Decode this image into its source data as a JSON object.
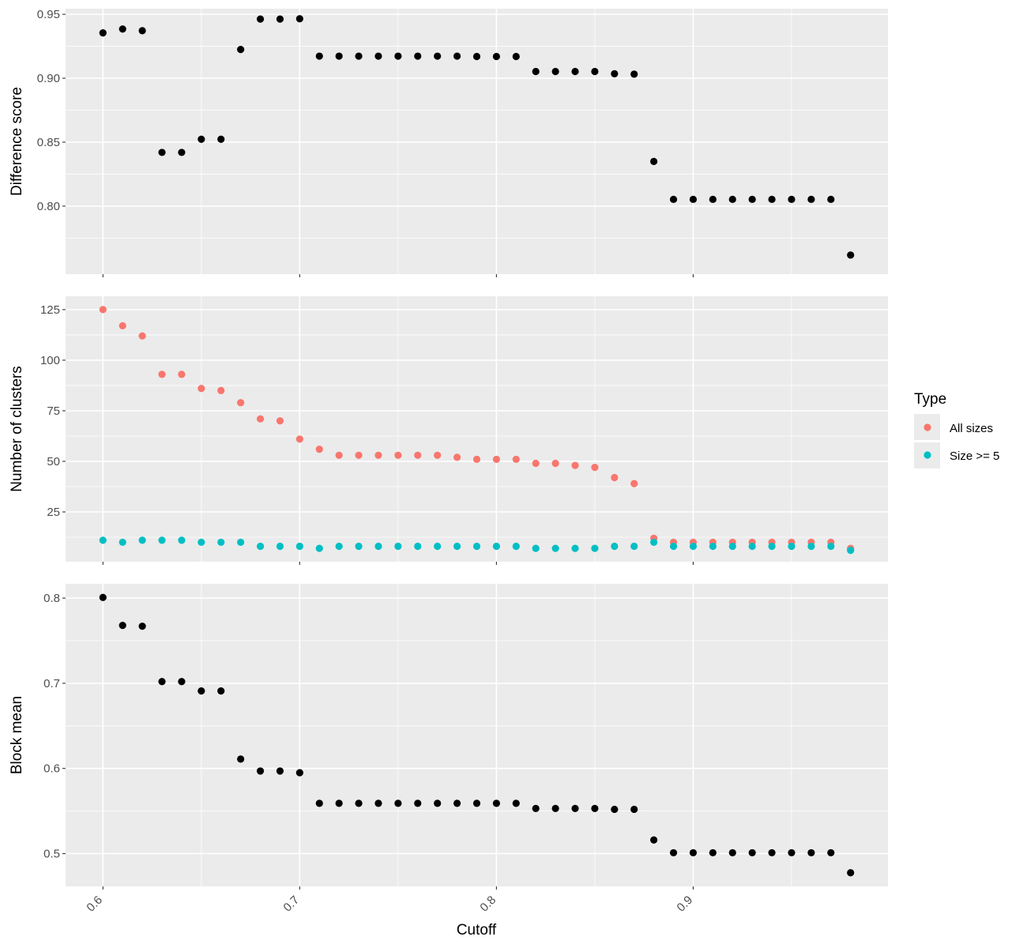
{
  "colors": {
    "panel_bg": "#EBEBEB",
    "grid": "#FFFFFF",
    "black_point": "#000000",
    "all_sizes": "#F8766D",
    "size_ge5": "#00BFC4"
  },
  "chart_data": {
    "type": "scatter",
    "xlabel": "Cutoff",
    "xlim": [
      0.581,
      0.999
    ],
    "x_ticks": [
      0.6,
      0.7,
      0.8,
      0.9
    ],
    "x_tick_labels": [
      "0.6",
      "0.7",
      "0.8",
      "0.9"
    ],
    "grid": true,
    "legend": {
      "title": "Type",
      "placement": "right",
      "entries": [
        {
          "label": "All sizes",
          "color": "#F8766D"
        },
        {
          "label": "Size >= 5",
          "color": "#00BFC4"
        }
      ]
    },
    "panels": [
      {
        "ylabel": "Difference score",
        "ylim": [
          0.7468,
          0.9544
        ],
        "y_ticks": [
          0.8,
          0.85,
          0.9,
          0.95
        ],
        "y_tick_labels": [
          "0.80",
          "0.85",
          "0.90",
          "0.95"
        ],
        "series": [
          {
            "color": "#000000",
            "points": [
              [
                0.6,
                0.9355
              ],
              [
                0.61,
                0.9385
              ],
              [
                0.62,
                0.9372
              ],
              [
                0.63,
                0.842
              ],
              [
                0.64,
                0.842
              ],
              [
                0.65,
                0.8523
              ],
              [
                0.66,
                0.8523
              ],
              [
                0.67,
                0.9225
              ],
              [
                0.68,
                0.9463
              ],
              [
                0.69,
                0.9463
              ],
              [
                0.7,
                0.9465
              ],
              [
                0.71,
                0.9173
              ],
              [
                0.72,
                0.9173
              ],
              [
                0.73,
                0.9173
              ],
              [
                0.74,
                0.9173
              ],
              [
                0.75,
                0.9173
              ],
              [
                0.76,
                0.9173
              ],
              [
                0.77,
                0.9173
              ],
              [
                0.78,
                0.9173
              ],
              [
                0.79,
                0.917
              ],
              [
                0.8,
                0.917
              ],
              [
                0.81,
                0.917
              ],
              [
                0.82,
                0.9053
              ],
              [
                0.83,
                0.9053
              ],
              [
                0.84,
                0.9053
              ],
              [
                0.85,
                0.9053
              ],
              [
                0.86,
                0.9035
              ],
              [
                0.87,
                0.9032
              ],
              [
                0.88,
                0.8349
              ],
              [
                0.89,
                0.8053
              ],
              [
                0.9,
                0.8053
              ],
              [
                0.91,
                0.8053
              ],
              [
                0.92,
                0.8053
              ],
              [
                0.93,
                0.8053
              ],
              [
                0.94,
                0.8053
              ],
              [
                0.95,
                0.8053
              ],
              [
                0.96,
                0.8053
              ],
              [
                0.97,
                0.8053
              ],
              [
                0.98,
                0.7617
              ]
            ]
          }
        ]
      },
      {
        "ylabel": "Number of clusters",
        "ylim": [
          0.4,
          131.6
        ],
        "y_ticks": [
          25,
          50,
          75,
          100,
          125
        ],
        "y_tick_labels": [
          "25",
          "50",
          "75",
          "100",
          "125"
        ],
        "series": [
          {
            "name": "All sizes",
            "color": "#F8766D",
            "points": [
              [
                0.6,
                125
              ],
              [
                0.61,
                117
              ],
              [
                0.62,
                112
              ],
              [
                0.63,
                93
              ],
              [
                0.64,
                93
              ],
              [
                0.65,
                86
              ],
              [
                0.66,
                85
              ],
              [
                0.67,
                79
              ],
              [
                0.68,
                71
              ],
              [
                0.69,
                70
              ],
              [
                0.7,
                61
              ],
              [
                0.71,
                56
              ],
              [
                0.72,
                53
              ],
              [
                0.73,
                53
              ],
              [
                0.74,
                53
              ],
              [
                0.75,
                53
              ],
              [
                0.76,
                53
              ],
              [
                0.77,
                53
              ],
              [
                0.78,
                52
              ],
              [
                0.79,
                51
              ],
              [
                0.8,
                51
              ],
              [
                0.81,
                51
              ],
              [
                0.82,
                49
              ],
              [
                0.83,
                49
              ],
              [
                0.84,
                48
              ],
              [
                0.85,
                47
              ],
              [
                0.86,
                42
              ],
              [
                0.87,
                39
              ],
              [
                0.88,
                12
              ],
              [
                0.89,
                10
              ],
              [
                0.9,
                10
              ],
              [
                0.91,
                10
              ],
              [
                0.92,
                10
              ],
              [
                0.93,
                10
              ],
              [
                0.94,
                10
              ],
              [
                0.95,
                10
              ],
              [
                0.96,
                10
              ],
              [
                0.97,
                10
              ],
              [
                0.98,
                7
              ]
            ]
          },
          {
            "name": "Size >= 5",
            "color": "#00BFC4",
            "points": [
              [
                0.6,
                11
              ],
              [
                0.61,
                10
              ],
              [
                0.62,
                11
              ],
              [
                0.63,
                11
              ],
              [
                0.64,
                11
              ],
              [
                0.65,
                10
              ],
              [
                0.66,
                10
              ],
              [
                0.67,
                10
              ],
              [
                0.68,
                8
              ],
              [
                0.69,
                8
              ],
              [
                0.7,
                8
              ],
              [
                0.71,
                7
              ],
              [
                0.72,
                8
              ],
              [
                0.73,
                8
              ],
              [
                0.74,
                8
              ],
              [
                0.75,
                8
              ],
              [
                0.76,
                8
              ],
              [
                0.77,
                8
              ],
              [
                0.78,
                8
              ],
              [
                0.79,
                8
              ],
              [
                0.8,
                8
              ],
              [
                0.81,
                8
              ],
              [
                0.82,
                7
              ],
              [
                0.83,
                7
              ],
              [
                0.84,
                7
              ],
              [
                0.85,
                7
              ],
              [
                0.86,
                8
              ],
              [
                0.87,
                8
              ],
              [
                0.88,
                10
              ],
              [
                0.89,
                8
              ],
              [
                0.9,
                8
              ],
              [
                0.91,
                8
              ],
              [
                0.92,
                8
              ],
              [
                0.93,
                8
              ],
              [
                0.94,
                8
              ],
              [
                0.95,
                8
              ],
              [
                0.96,
                8
              ],
              [
                0.97,
                8
              ],
              [
                0.98,
                6
              ]
            ]
          }
        ]
      },
      {
        "ylabel": "Block mean",
        "ylim": [
          0.4615,
          0.8168
        ],
        "y_ticks": [
          0.5,
          0.6,
          0.7,
          0.8
        ],
        "y_tick_labels": [
          "0.5",
          "0.6",
          "0.7",
          "0.8"
        ],
        "series": [
          {
            "color": "#000000",
            "points": [
              [
                0.6,
                0.8008
              ],
              [
                0.61,
                0.768
              ],
              [
                0.62,
                0.767
              ],
              [
                0.63,
                0.702
              ],
              [
                0.64,
                0.702
              ],
              [
                0.65,
                0.691
              ],
              [
                0.66,
                0.691
              ],
              [
                0.67,
                0.611
              ],
              [
                0.68,
                0.597
              ],
              [
                0.69,
                0.597
              ],
              [
                0.7,
                0.595
              ],
              [
                0.71,
                0.559
              ],
              [
                0.72,
                0.559
              ],
              [
                0.73,
                0.559
              ],
              [
                0.74,
                0.559
              ],
              [
                0.75,
                0.559
              ],
              [
                0.76,
                0.559
              ],
              [
                0.77,
                0.559
              ],
              [
                0.78,
                0.559
              ],
              [
                0.79,
                0.559
              ],
              [
                0.8,
                0.559
              ],
              [
                0.81,
                0.559
              ],
              [
                0.82,
                0.553
              ],
              [
                0.83,
                0.553
              ],
              [
                0.84,
                0.553
              ],
              [
                0.85,
                0.553
              ],
              [
                0.86,
                0.552
              ],
              [
                0.87,
                0.552
              ],
              [
                0.88,
                0.516
              ],
              [
                0.89,
                0.501
              ],
              [
                0.9,
                0.501
              ],
              [
                0.91,
                0.501
              ],
              [
                0.92,
                0.501
              ],
              [
                0.93,
                0.501
              ],
              [
                0.94,
                0.501
              ],
              [
                0.95,
                0.501
              ],
              [
                0.96,
                0.501
              ],
              [
                0.97,
                0.501
              ],
              [
                0.98,
                0.4775
              ]
            ]
          }
        ]
      }
    ]
  }
}
